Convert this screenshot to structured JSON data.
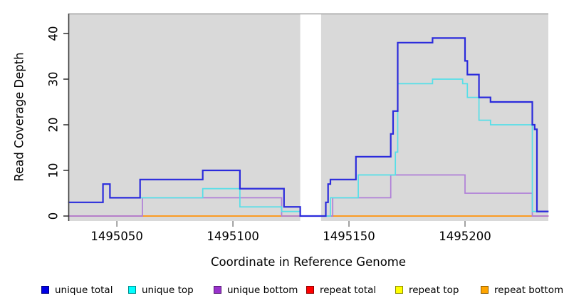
{
  "chart_data": {
    "type": "line",
    "step": true,
    "title": "",
    "xlabel": "Coordinate in Reference Genome",
    "ylabel": "Read Coverage Depth",
    "x_ticks": [
      1495050,
      1495100,
      1495150,
      1495200
    ],
    "x_tick_labels": [
      "1495050",
      "1495100",
      "1495150",
      "1495200"
    ],
    "y_ticks": [
      0,
      10,
      20,
      30,
      40
    ],
    "y_tick_labels": [
      "0",
      "10",
      "20",
      "30",
      "40"
    ],
    "xlim": [
      1495029,
      1495236
    ],
    "ylim": [
      0,
      44
    ],
    "grid": false,
    "panel_background": "#d9d9d9",
    "panel_border_color": "#919191",
    "axis_color": "#3a3a3a",
    "xtick_color": "#8a8a8a",
    "gap_band": {
      "from": 1495129,
      "to": 1495138,
      "color": "#ffffff"
    },
    "series": [
      {
        "name": "repeat top",
        "color": "#FFE800",
        "points": [
          [
            1495029,
            0
          ]
        ],
        "end": 1495236
      },
      {
        "name": "repeat total",
        "color": "#D4547E",
        "points": [
          [
            1495029,
            0
          ]
        ],
        "end": 1495236
      },
      {
        "name": "repeat bottom",
        "color": "#FFA019",
        "points": [
          [
            1495061,
            0
          ]
        ],
        "end": 1495229
      },
      {
        "name": "unique bottom",
        "color": "#B07FD8",
        "points": [
          [
            1495029,
            0
          ],
          [
            1495061,
            4
          ],
          [
            1495121,
            0
          ],
          [
            1495143,
            4
          ],
          [
            1495168,
            9
          ],
          [
            1495200,
            5
          ],
          [
            1495229,
            0
          ]
        ],
        "end": 1495236
      },
      {
        "name": "unique top",
        "color": "#55DFE8",
        "points": [
          [
            1495029,
            3
          ],
          [
            1495044,
            7
          ],
          [
            1495047,
            4
          ],
          [
            1495061,
            4
          ],
          [
            1495087,
            6
          ],
          [
            1495103,
            2
          ],
          [
            1495121,
            1
          ],
          [
            1495129,
            0
          ],
          [
            1495142,
            4
          ],
          [
            1495154,
            9
          ],
          [
            1495170,
            14
          ],
          [
            1495171,
            29
          ],
          [
            1495186,
            30
          ],
          [
            1495199,
            29
          ],
          [
            1495201,
            26
          ],
          [
            1495206,
            21
          ],
          [
            1495211,
            20
          ],
          [
            1495229,
            1
          ]
        ],
        "end": 1495236
      },
      {
        "name": "unique total",
        "color": "#2B2BDC",
        "points": [
          [
            1495029,
            3
          ],
          [
            1495044,
            7
          ],
          [
            1495047,
            4
          ],
          [
            1495060,
            8
          ],
          [
            1495087,
            10
          ],
          [
            1495103,
            6
          ],
          [
            1495122,
            2
          ],
          [
            1495129,
            0
          ],
          [
            1495140,
            3
          ],
          [
            1495141,
            7
          ],
          [
            1495142,
            8
          ],
          [
            1495153,
            13
          ],
          [
            1495168,
            18
          ],
          [
            1495169,
            23
          ],
          [
            1495171,
            38
          ],
          [
            1495186,
            39
          ],
          [
            1495200,
            34
          ],
          [
            1495201,
            31
          ],
          [
            1495206,
            26
          ],
          [
            1495211,
            25
          ],
          [
            1495229,
            20
          ],
          [
            1495230,
            19
          ],
          [
            1495231,
            1
          ]
        ],
        "end": 1495236
      }
    ],
    "legend": {
      "position": "bottom",
      "items": [
        {
          "label": "unique total",
          "color": "#0000E6"
        },
        {
          "label": "unique top",
          "color": "#00FFFF"
        },
        {
          "label": "unique bottom",
          "color": "#9932CC"
        },
        {
          "label": "repeat total",
          "color": "#FF0000"
        },
        {
          "label": "repeat top",
          "color": "#FFFF00"
        },
        {
          "label": "repeat bottom",
          "color": "#FFA500"
        }
      ]
    }
  }
}
